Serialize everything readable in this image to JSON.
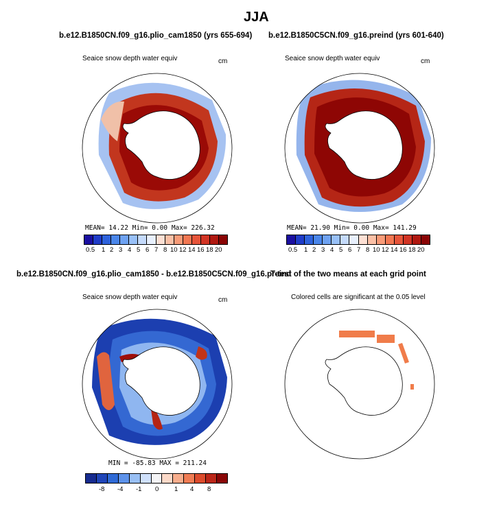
{
  "figure": {
    "title": "JJA",
    "panel_tl": {
      "run": "b.e12.B1850CN.f09_g16.plio_cam1850 (yrs 655-694)",
      "variable": "Seaice snow depth water equiv",
      "units": "cm",
      "stats": "MEAN=   14.22   Min=     0.00   Max=  226.32"
    },
    "panel_tr": {
      "run": "b.e12.B1850C5CN.f09_g16.preind (yrs 601-640)",
      "variable": "Seaice snow depth water equiv",
      "units": "cm",
      "stats": "MEAN=   21.90   Min=     0.00   Max=  141.29"
    },
    "panel_bl": {
      "run": "b.e12.B1850CN.f09_g16.plio_cam1850 - b.e12.B1850C5CN.f09_g16.preind",
      "variable": "Seaice snow depth water equiv",
      "units": "cm",
      "stats": "MIN = -85.83  MAX = 211.24"
    },
    "panel_br": {
      "run": "T-test of the two means at each grid point",
      "note": "Colored cells are significant at the 0.05 level"
    },
    "colorbar_abs": {
      "ticks": [
        "0.5",
        "1",
        "2",
        "3",
        "4",
        "5",
        "6",
        "7",
        "8",
        "10",
        "12",
        "14",
        "16",
        "18",
        "20"
      ],
      "colors": [
        "#1a0fa0",
        "#1f3cc8",
        "#2e62dc",
        "#4a86ea",
        "#6ea2f2",
        "#98c0f8",
        "#c4dafb",
        "#e8f0fd",
        "#fde0d4",
        "#fbc0a6",
        "#f89b78",
        "#f27752",
        "#e7553a",
        "#d23424",
        "#b01810",
        "#8a0404"
      ]
    },
    "colorbar_diff": {
      "ticks": [
        "-8",
        "-4",
        "-1",
        "0",
        "1",
        "4",
        "8"
      ],
      "colors": [
        "#162b8f",
        "#1f45b8",
        "#2f6ad6",
        "#5d92ea",
        "#98bff4",
        "#cfe0fb",
        "#f4f4f6",
        "#fbd9c8",
        "#f7ad8c",
        "#f07c54",
        "#dc4b2c",
        "#bb2618",
        "#8a0606"
      ]
    }
  }
}
